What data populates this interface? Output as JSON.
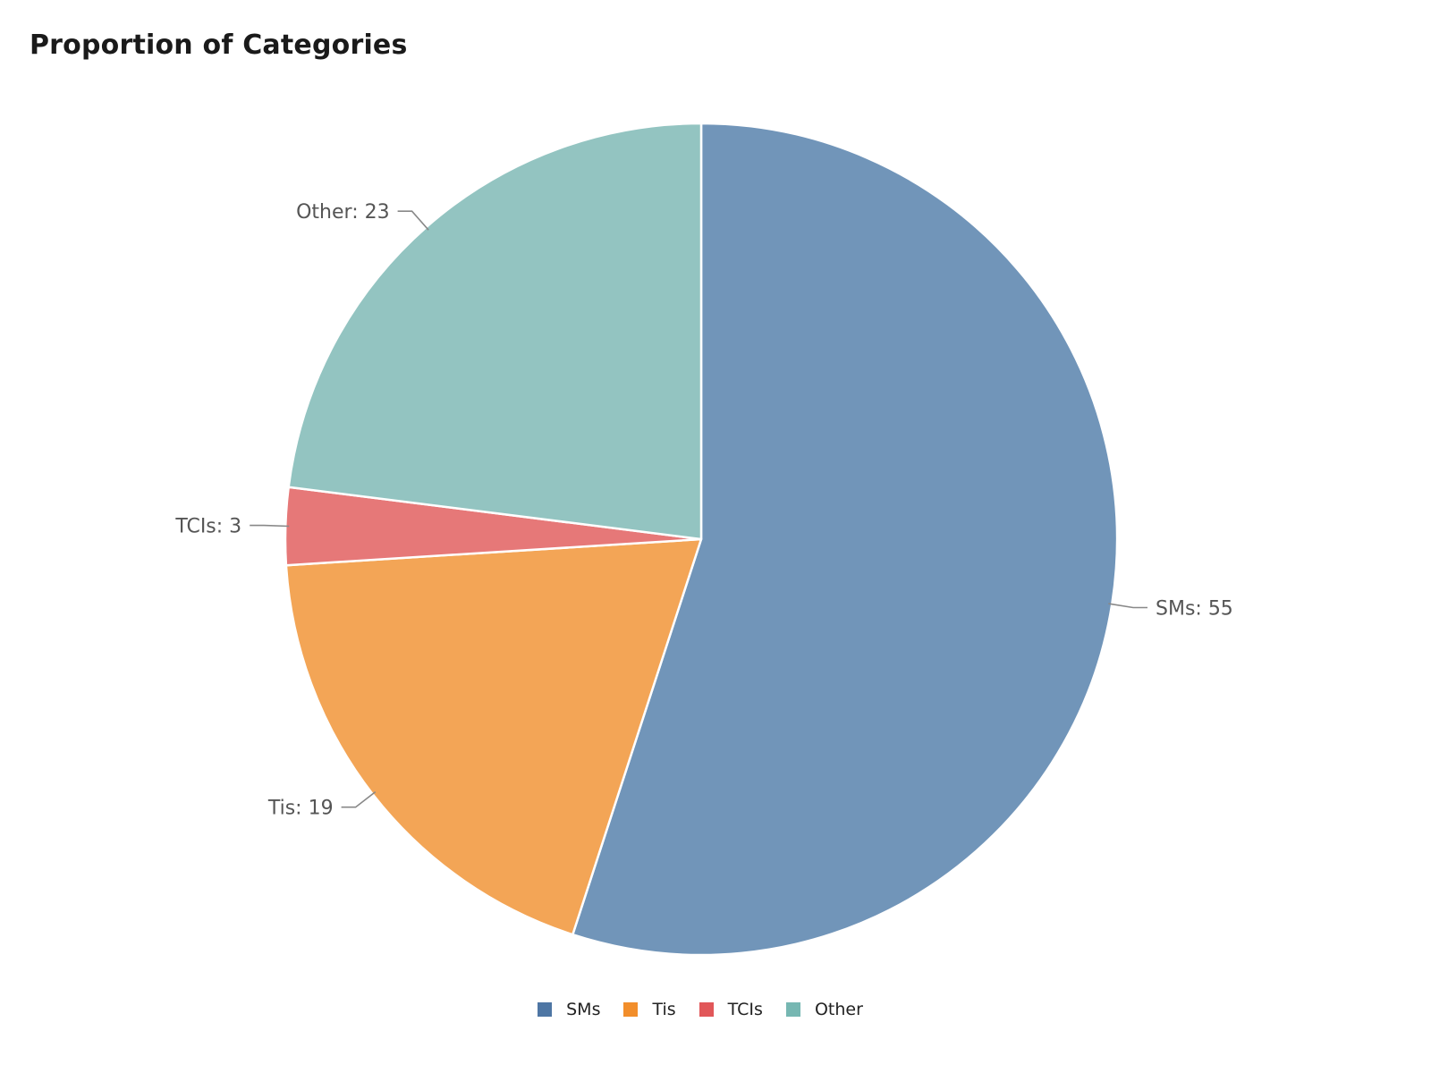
{
  "chart_data": {
    "type": "pie",
    "title": "Proportion of Categories",
    "categories": [
      "SMs",
      "Tis",
      "TCIs",
      "Other"
    ],
    "values": [
      55,
      19,
      3,
      23
    ],
    "slice_colors": [
      "#7195b9",
      "#f3a556",
      "#e67878",
      "#93c4c1"
    ],
    "legend_colors": [
      "#4e76a4",
      "#f28e2b",
      "#e15759",
      "#76b7b2"
    ],
    "slice_labels": [
      "SMs: 55",
      "Tis: 19",
      "TCIs: 3",
      "Other: 23"
    ],
    "start_angle": "12 o'clock",
    "direction": "clockwise",
    "legend_position": "bottom-center"
  }
}
